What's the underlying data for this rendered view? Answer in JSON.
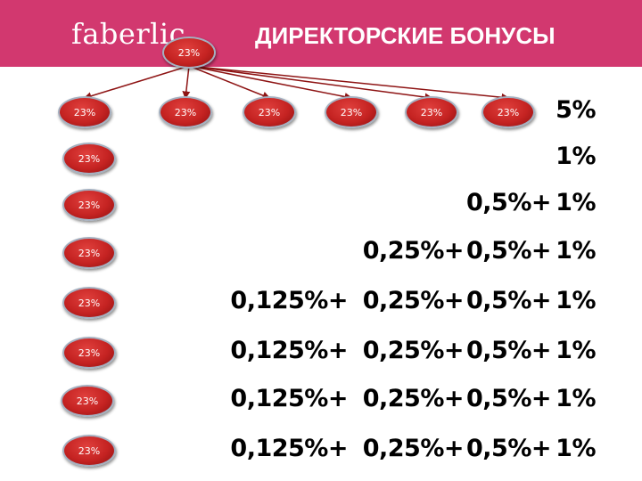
{
  "header": {
    "logo_text": "faberlic",
    "title": "ДИРЕКТОРСКИЕ БОНУСЫ",
    "background_color": "#d2386f"
  },
  "top_node": {
    "label": "23%"
  },
  "first_row_nodes": [
    "23%",
    "23%",
    "23%",
    "23%",
    "23%",
    "23%"
  ],
  "left_column_nodes": [
    "23%",
    "23%",
    "23%",
    "23%",
    "23%",
    "23%",
    "23%"
  ],
  "rows": [
    {
      "cells": [
        "",
        "",
        "",
        "5%"
      ]
    },
    {
      "cells": [
        "",
        "",
        "",
        "1%"
      ]
    },
    {
      "cells": [
        "",
        "",
        "0,5%+",
        "1%"
      ]
    },
    {
      "cells": [
        "",
        "0,25%+",
        "0,5%+",
        "1%"
      ]
    },
    {
      "cells": [
        "0,125%+",
        "0,25%+",
        "0,5%+",
        "1%"
      ]
    },
    {
      "cells": [
        "0,125%+",
        "0,25%+",
        "0,5%+",
        "1%"
      ]
    },
    {
      "cells": [
        "0,125%+",
        "0,25%+",
        "0,5%+",
        "1%"
      ]
    },
    {
      "cells": [
        "0,125%+",
        "0,25%+",
        "0,5%+",
        "1%"
      ]
    }
  ],
  "colors": {
    "oval_fill": "#c52322",
    "oval_border": "#a4b0c0",
    "connector": "#8e1414"
  }
}
